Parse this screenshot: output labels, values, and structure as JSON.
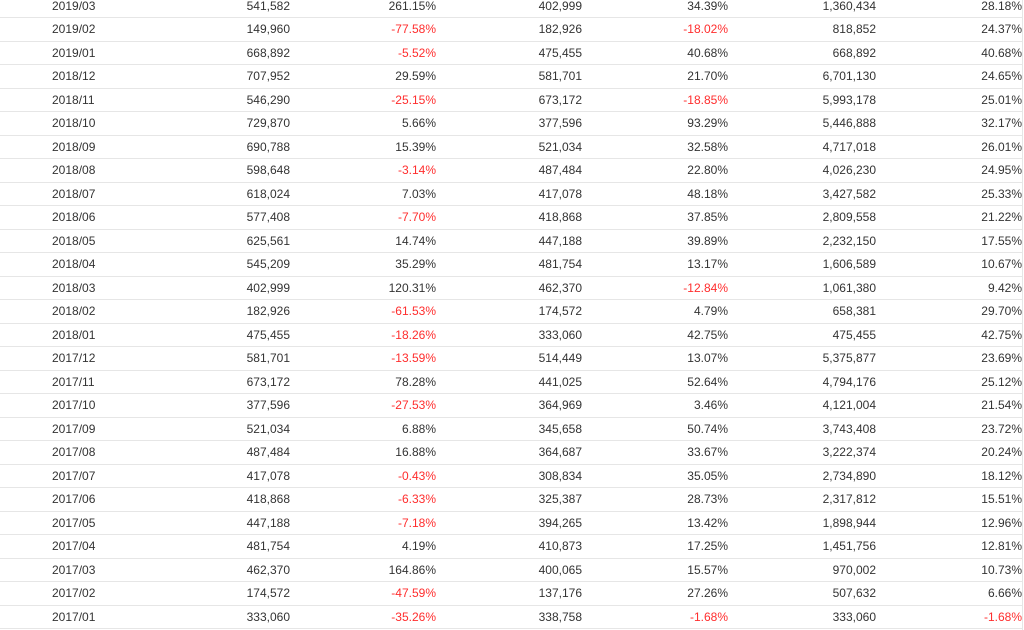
{
  "table": {
    "rows": [
      {
        "month": "2019/03",
        "c1": "541,582",
        "c2": "261.15%",
        "c3": "402,999",
        "c4": "34.39%",
        "c5": "1,360,434",
        "c6": "28.18%"
      },
      {
        "month": "2019/02",
        "c1": "149,960",
        "c2": "-77.58%",
        "c3": "182,926",
        "c4": "-18.02%",
        "c5": "818,852",
        "c6": "24.37%"
      },
      {
        "month": "2019/01",
        "c1": "668,892",
        "c2": "-5.52%",
        "c3": "475,455",
        "c4": "40.68%",
        "c5": "668,892",
        "c6": "40.68%"
      },
      {
        "month": "2018/12",
        "c1": "707,952",
        "c2": "29.59%",
        "c3": "581,701",
        "c4": "21.70%",
        "c5": "6,701,130",
        "c6": "24.65%"
      },
      {
        "month": "2018/11",
        "c1": "546,290",
        "c2": "-25.15%",
        "c3": "673,172",
        "c4": "-18.85%",
        "c5": "5,993,178",
        "c6": "25.01%"
      },
      {
        "month": "2018/10",
        "c1": "729,870",
        "c2": "5.66%",
        "c3": "377,596",
        "c4": "93.29%",
        "c5": "5,446,888",
        "c6": "32.17%"
      },
      {
        "month": "2018/09",
        "c1": "690,788",
        "c2": "15.39%",
        "c3": "521,034",
        "c4": "32.58%",
        "c5": "4,717,018",
        "c6": "26.01%"
      },
      {
        "month": "2018/08",
        "c1": "598,648",
        "c2": "-3.14%",
        "c3": "487,484",
        "c4": "22.80%",
        "c5": "4,026,230",
        "c6": "24.95%"
      },
      {
        "month": "2018/07",
        "c1": "618,024",
        "c2": "7.03%",
        "c3": "417,078",
        "c4": "48.18%",
        "c5": "3,427,582",
        "c6": "25.33%"
      },
      {
        "month": "2018/06",
        "c1": "577,408",
        "c2": "-7.70%",
        "c3": "418,868",
        "c4": "37.85%",
        "c5": "2,809,558",
        "c6": "21.22%"
      },
      {
        "month": "2018/05",
        "c1": "625,561",
        "c2": "14.74%",
        "c3": "447,188",
        "c4": "39.89%",
        "c5": "2,232,150",
        "c6": "17.55%"
      },
      {
        "month": "2018/04",
        "c1": "545,209",
        "c2": "35.29%",
        "c3": "481,754",
        "c4": "13.17%",
        "c5": "1,606,589",
        "c6": "10.67%"
      },
      {
        "month": "2018/03",
        "c1": "402,999",
        "c2": "120.31%",
        "c3": "462,370",
        "c4": "-12.84%",
        "c5": "1,061,380",
        "c6": "9.42%"
      },
      {
        "month": "2018/02",
        "c1": "182,926",
        "c2": "-61.53%",
        "c3": "174,572",
        "c4": "4.79%",
        "c5": "658,381",
        "c6": "29.70%"
      },
      {
        "month": "2018/01",
        "c1": "475,455",
        "c2": "-18.26%",
        "c3": "333,060",
        "c4": "42.75%",
        "c5": "475,455",
        "c6": "42.75%"
      },
      {
        "month": "2017/12",
        "c1": "581,701",
        "c2": "-13.59%",
        "c3": "514,449",
        "c4": "13.07%",
        "c5": "5,375,877",
        "c6": "23.69%"
      },
      {
        "month": "2017/11",
        "c1": "673,172",
        "c2": "78.28%",
        "c3": "441,025",
        "c4": "52.64%",
        "c5": "4,794,176",
        "c6": "25.12%"
      },
      {
        "month": "2017/10",
        "c1": "377,596",
        "c2": "-27.53%",
        "c3": "364,969",
        "c4": "3.46%",
        "c5": "4,121,004",
        "c6": "21.54%"
      },
      {
        "month": "2017/09",
        "c1": "521,034",
        "c2": "6.88%",
        "c3": "345,658",
        "c4": "50.74%",
        "c5": "3,743,408",
        "c6": "23.72%"
      },
      {
        "month": "2017/08",
        "c1": "487,484",
        "c2": "16.88%",
        "c3": "364,687",
        "c4": "33.67%",
        "c5": "3,222,374",
        "c6": "20.24%"
      },
      {
        "month": "2017/07",
        "c1": "417,078",
        "c2": "-0.43%",
        "c3": "308,834",
        "c4": "35.05%",
        "c5": "2,734,890",
        "c6": "18.12%"
      },
      {
        "month": "2017/06",
        "c1": "418,868",
        "c2": "-6.33%",
        "c3": "325,387",
        "c4": "28.73%",
        "c5": "2,317,812",
        "c6": "15.51%"
      },
      {
        "month": "2017/05",
        "c1": "447,188",
        "c2": "-7.18%",
        "c3": "394,265",
        "c4": "13.42%",
        "c5": "1,898,944",
        "c6": "12.96%"
      },
      {
        "month": "2017/04",
        "c1": "481,754",
        "c2": "4.19%",
        "c3": "410,873",
        "c4": "17.25%",
        "c5": "1,451,756",
        "c6": "12.81%"
      },
      {
        "month": "2017/03",
        "c1": "462,370",
        "c2": "164.86%",
        "c3": "400,065",
        "c4": "15.57%",
        "c5": "970,002",
        "c6": "10.73%"
      },
      {
        "month": "2017/02",
        "c1": "174,572",
        "c2": "-47.59%",
        "c3": "137,176",
        "c4": "27.26%",
        "c5": "507,632",
        "c6": "6.66%"
      },
      {
        "month": "2017/01",
        "c1": "333,060",
        "c2": "-35.26%",
        "c3": "338,758",
        "c4": "-1.68%",
        "c5": "333,060",
        "c6": "-1.68%"
      }
    ]
  },
  "colors": {
    "negative": "#ff2d2d",
    "text": "#333333",
    "row_border": "#e6e6e6"
  }
}
